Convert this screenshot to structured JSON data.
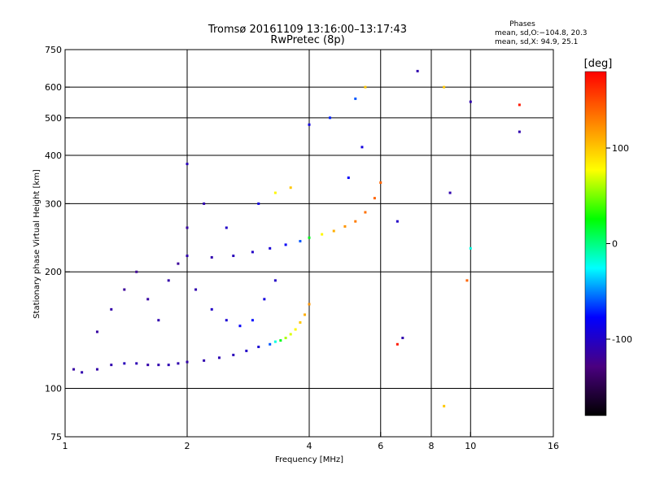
{
  "chart_data": {
    "type": "scatter",
    "title": "Tromsø 20161109 13:16:00–13:17:43",
    "subtitle": "RwPretec (8p)",
    "xlabel": "Frequency [MHz]",
    "ylabel": "Stationary phase Virtual Height [km]",
    "x_scale": "log",
    "y_scale": "log",
    "xlim": [
      1,
      16
    ],
    "ylim": [
      75,
      750
    ],
    "x_ticks": [
      1,
      2,
      4,
      6,
      8,
      10,
      16
    ],
    "y_ticks": [
      75,
      100,
      200,
      300,
      400,
      500,
      600,
      750
    ],
    "x_gridlines": [
      2,
      4,
      6,
      8,
      10
    ],
    "y_gridlines": [
      100,
      200,
      300,
      400,
      500,
      600
    ],
    "grid": true,
    "phases": {
      "heading": "Phases",
      "line_o": "mean, sd,O:−104.8, 20.3",
      "line_x": "mean, sd,X:  94.9, 25.1"
    },
    "colorbar": {
      "label": "[deg]",
      "ticks": [
        100,
        0,
        -100
      ],
      "range": [
        -180,
        180
      ],
      "colors": [
        "#000000",
        "#4a0080",
        "#0000ff",
        "#00ffff",
        "#00ff00",
        "#ffff00",
        "#ff8000",
        "#ff0000"
      ]
    },
    "clusters": [
      {
        "name": "o-mode low layer",
        "points": [
          [
            1.05,
            112,
            -115
          ],
          [
            1.1,
            110,
            -110
          ],
          [
            1.2,
            112,
            -112
          ],
          [
            1.3,
            115,
            -110
          ],
          [
            1.4,
            116,
            -105
          ],
          [
            1.5,
            116,
            -108
          ],
          [
            1.6,
            115,
            -112
          ],
          [
            1.7,
            115,
            -110
          ],
          [
            1.8,
            115,
            -108
          ],
          [
            1.9,
            116,
            -110
          ],
          [
            2.0,
            117,
            -112
          ],
          [
            2.2,
            118,
            -110
          ],
          [
            2.4,
            120,
            -108
          ],
          [
            2.6,
            122,
            -105
          ],
          [
            2.8,
            125,
            -100
          ],
          [
            3.0,
            128,
            -95
          ],
          [
            3.2,
            130,
            -60
          ],
          [
            3.3,
            132,
            -20
          ],
          [
            3.4,
            133,
            20
          ],
          [
            3.5,
            135,
            60
          ],
          [
            3.6,
            138,
            70
          ],
          [
            3.7,
            142,
            80
          ],
          [
            3.8,
            148,
            100
          ],
          [
            3.9,
            155,
            110
          ],
          [
            4.0,
            165,
            120
          ]
        ]
      },
      {
        "name": "o-mode spread",
        "points": [
          [
            1.2,
            140,
            -115
          ],
          [
            1.3,
            160,
            -112
          ],
          [
            1.4,
            180,
            -118
          ],
          [
            1.5,
            200,
            -120
          ],
          [
            1.6,
            170,
            -115
          ],
          [
            1.7,
            150,
            -110
          ],
          [
            1.8,
            190,
            -112
          ],
          [
            1.9,
            210,
            -118
          ],
          [
            2.0,
            260,
            -115
          ],
          [
            2.1,
            180,
            -110
          ],
          [
            2.3,
            160,
            -100
          ],
          [
            2.5,
            150,
            -95
          ],
          [
            2.7,
            145,
            -80
          ],
          [
            2.9,
            150,
            -75
          ],
          [
            3.1,
            170,
            -90
          ],
          [
            3.3,
            190,
            -100
          ]
        ]
      },
      {
        "name": "x-mode upper trace",
        "points": [
          [
            2.0,
            220,
            -110
          ],
          [
            2.3,
            218,
            -110
          ],
          [
            2.6,
            220,
            -105
          ],
          [
            2.9,
            225,
            -100
          ],
          [
            3.2,
            230,
            -95
          ],
          [
            3.5,
            235,
            -80
          ],
          [
            3.8,
            240,
            -60
          ],
          [
            4.0,
            245,
            20
          ],
          [
            4.3,
            250,
            80
          ],
          [
            4.6,
            255,
            110
          ],
          [
            4.9,
            262,
            120
          ],
          [
            5.2,
            270,
            130
          ],
          [
            5.5,
            285,
            135
          ],
          [
            5.8,
            310,
            140
          ],
          [
            6.0,
            340,
            140
          ]
        ]
      },
      {
        "name": "x-mode spread",
        "points": [
          [
            2.0,
            380,
            -105
          ],
          [
            2.2,
            300,
            -110
          ],
          [
            2.5,
            260,
            -100
          ],
          [
            3.0,
            300,
            -90
          ],
          [
            3.3,
            320,
            80
          ],
          [
            3.6,
            330,
            100
          ],
          [
            4.0,
            480,
            -90
          ],
          [
            4.5,
            500,
            -70
          ],
          [
            5.2,
            560,
            -60
          ],
          [
            5.5,
            600,
            100
          ],
          [
            5.0,
            350,
            -80
          ],
          [
            5.4,
            420,
            -90
          ]
        ]
      },
      {
        "name": "scattered noise",
        "points": [
          [
            6.6,
            270,
            -100
          ],
          [
            7.4,
            660,
            -110
          ],
          [
            8.6,
            600,
            100
          ],
          [
            8.9,
            320,
            -110
          ],
          [
            10.0,
            550,
            -110
          ],
          [
            10.0,
            230,
            -20
          ],
          [
            13.2,
            540,
            170
          ],
          [
            13.2,
            460,
            -110
          ],
          [
            9.8,
            190,
            140
          ],
          [
            6.6,
            130,
            170
          ],
          [
            6.8,
            135,
            -110
          ],
          [
            8.6,
            90,
            100
          ]
        ]
      }
    ]
  }
}
